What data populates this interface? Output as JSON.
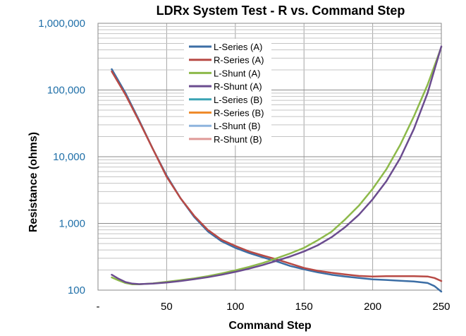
{
  "chart_data": {
    "type": "line",
    "title": "LDRx System Test - R vs. Command Step",
    "xlabel": "Command Step",
    "ylabel": "Resistance (ohms)",
    "xlim": [
      0,
      250
    ],
    "ylim": [
      100,
      1000000
    ],
    "yscale": "log",
    "xticks": [
      "-",
      "50",
      "100",
      "150",
      "200",
      "250"
    ],
    "xtick_values": [
      0,
      50,
      100,
      150,
      200,
      250
    ],
    "yticks": [
      "100",
      "1,000",
      "10,000",
      "100,000",
      "1,000,000"
    ],
    "ytick_values": [
      100,
      1000,
      10000,
      100000,
      1000000
    ],
    "grid": true,
    "legend_position": "top-center",
    "series": [
      {
        "name": "L-Series (A)",
        "color": "#3c6ea5",
        "x": [
          10,
          20,
          30,
          40,
          50,
          60,
          70,
          80,
          90,
          100,
          110,
          120,
          130,
          140,
          150,
          160,
          170,
          180,
          190,
          200,
          210,
          220,
          230,
          240,
          245,
          250
        ],
        "y": [
          205000,
          90000,
          35000,
          13000,
          5200,
          2400,
          1250,
          760,
          540,
          430,
          360,
          310,
          270,
          230,
          205,
          185,
          170,
          160,
          152,
          145,
          142,
          138,
          135,
          128,
          115,
          95
        ]
      },
      {
        "name": "R-Series (A)",
        "color": "#b84a45",
        "x": [
          10,
          20,
          30,
          40,
          50,
          60,
          70,
          80,
          90,
          100,
          110,
          120,
          130,
          140,
          150,
          160,
          170,
          180,
          190,
          200,
          210,
          220,
          230,
          240,
          245,
          250
        ],
        "y": [
          190000,
          85000,
          34000,
          13000,
          5000,
          2400,
          1300,
          800,
          570,
          460,
          380,
          330,
          290,
          250,
          215,
          195,
          182,
          172,
          163,
          160,
          162,
          162,
          162,
          160,
          152,
          137
        ]
      },
      {
        "name": "L-Shunt (A)",
        "color": "#8db94a",
        "x": [
          10,
          15,
          20,
          25,
          30,
          40,
          50,
          60,
          70,
          80,
          90,
          100,
          110,
          120,
          130,
          140,
          150,
          160,
          170,
          180,
          190,
          200,
          210,
          220,
          230,
          240,
          250
        ],
        "y": [
          155,
          140,
          128,
          122,
          122,
          126,
          133,
          141,
          150,
          162,
          178,
          198,
          223,
          255,
          300,
          355,
          430,
          560,
          750,
          1150,
          1850,
          3300,
          6500,
          15000,
          40000,
          120000,
          440000
        ]
      },
      {
        "name": "R-Shunt (A)",
        "color": "#6b4c8f",
        "x": [
          10,
          15,
          20,
          25,
          30,
          40,
          50,
          60,
          70,
          80,
          90,
          100,
          110,
          120,
          130,
          140,
          150,
          160,
          170,
          180,
          190,
          200,
          210,
          220,
          230,
          240,
          250
        ],
        "y": [
          170,
          148,
          132,
          125,
          123,
          125,
          130,
          137,
          146,
          156,
          170,
          188,
          210,
          238,
          275,
          320,
          380,
          470,
          620,
          880,
          1350,
          2300,
          4300,
          9500,
          26000,
          90000,
          450000
        ]
      },
      {
        "name": "L-Series (B)",
        "color": "#3aa3b4",
        "x": [],
        "y": []
      },
      {
        "name": "R-Series (B)",
        "color": "#ef8b2c",
        "x": [],
        "y": []
      },
      {
        "name": "L-Shunt (B)",
        "color": "#8eb4de",
        "x": [],
        "y": []
      },
      {
        "name": "R-Shunt (B)",
        "color": "#df9a98",
        "x": [],
        "y": []
      }
    ]
  }
}
